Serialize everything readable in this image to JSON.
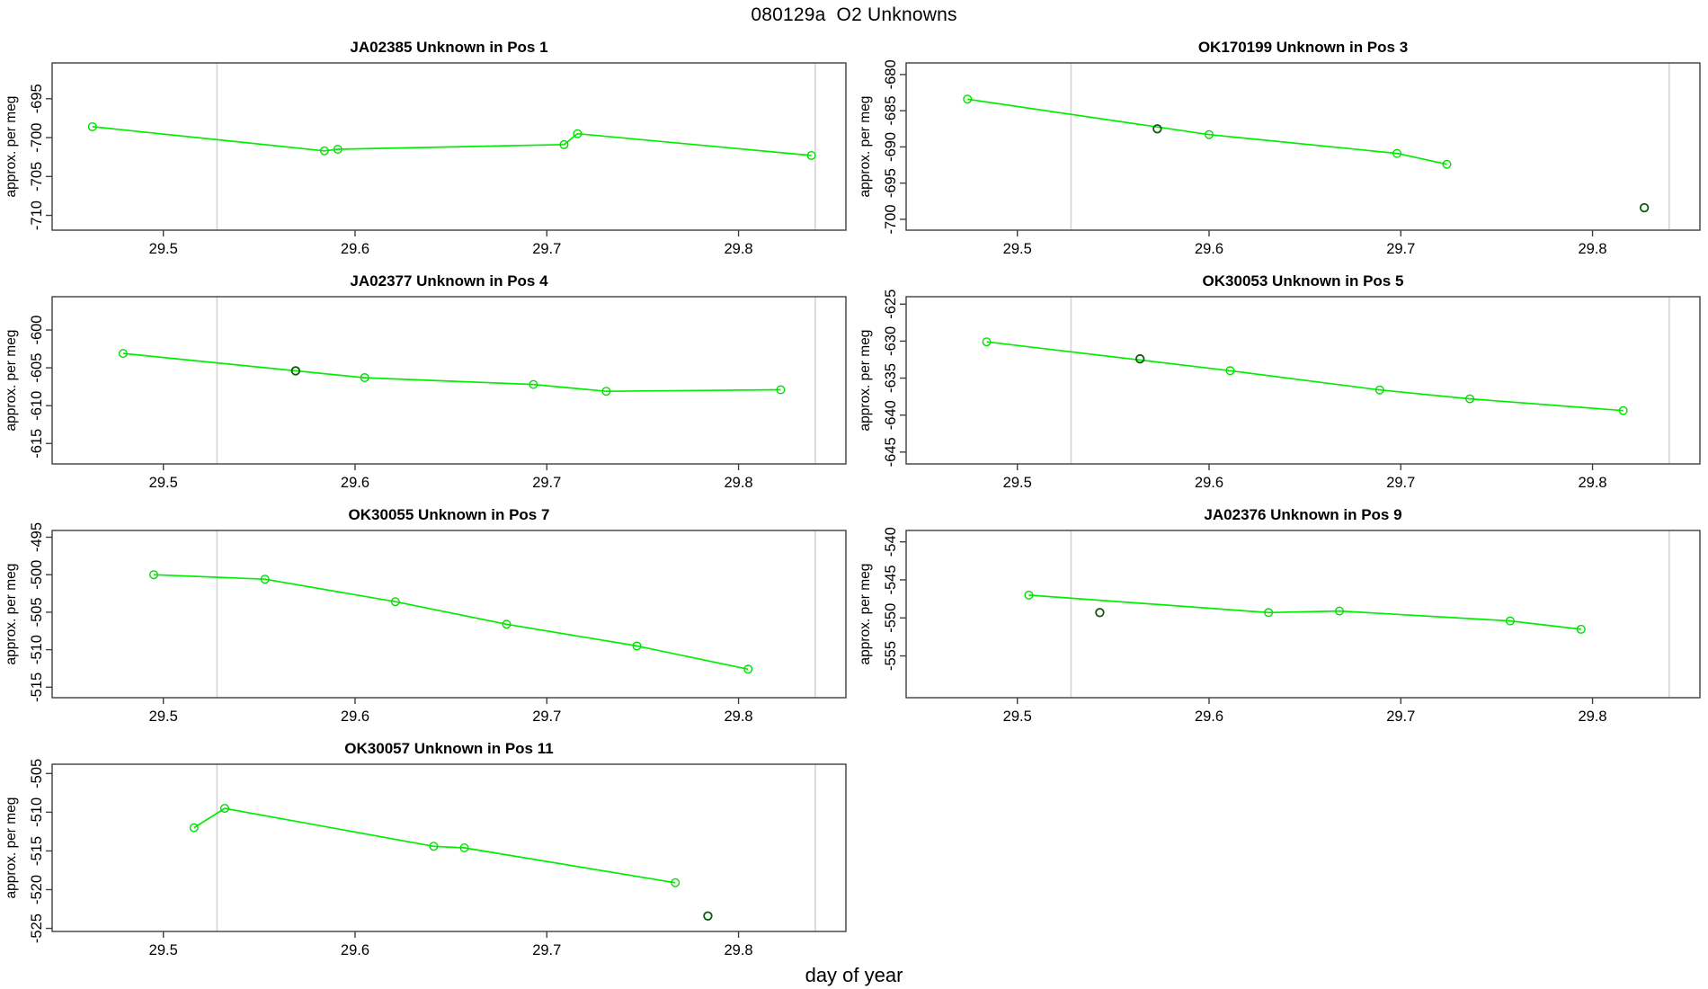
{
  "figure": {
    "title": "080129a  O2 Unknowns",
    "xlabel": "day of year",
    "ylabel": "approx. per meg",
    "xlim": [
      29.442,
      29.856
    ],
    "xticks": [
      29.5,
      29.6,
      29.7,
      29.8
    ],
    "vlines": [
      29.528,
      29.84
    ],
    "colors": {
      "line": "#00ee00",
      "marker": "#00dd00",
      "dark_marker": "#0a5c0a",
      "vline": "#d4d4d4",
      "axis": "#3f3f3f",
      "text": "#000000"
    }
  },
  "chart_data": [
    {
      "type": "line",
      "title": "JA02385   Unknown in Pos 1",
      "ylabel": "approx. per meg",
      "yticks": [
        -695,
        -700,
        -705,
        -710
      ],
      "ylim": [
        -711.9,
        -690.4
      ],
      "points": [
        {
          "x": 29.463,
          "y": -698.6,
          "dark": false
        },
        {
          "x": 29.584,
          "y": -701.7,
          "dark": false
        },
        {
          "x": 29.591,
          "y": -701.5,
          "dark": false
        },
        {
          "x": 29.709,
          "y": -700.9,
          "dark": false
        },
        {
          "x": 29.716,
          "y": -699.5,
          "dark": false
        },
        {
          "x": 29.838,
          "y": -702.3,
          "dark": false
        }
      ]
    },
    {
      "type": "line",
      "title": "OK170199   Unknown in Pos 3",
      "ylabel": "approx. per meg",
      "yticks": [
        -680,
        -685,
        -690,
        -695,
        -700
      ],
      "ylim": [
        -701.5,
        -678.4
      ],
      "points": [
        {
          "x": 29.474,
          "y": -683.4,
          "dark": false
        },
        {
          "x": 29.573,
          "y": -687.5,
          "dark": true
        },
        {
          "x": 29.6,
          "y": -688.3,
          "dark": false
        },
        {
          "x": 29.698,
          "y": -690.9,
          "dark": false
        },
        {
          "x": 29.724,
          "y": -692.4,
          "dark": false
        },
        {
          "x": 29.827,
          "y": -698.4,
          "dark": true
        }
      ]
    },
    {
      "type": "line",
      "title": "JA02377   Unknown in Pos 4",
      "ylabel": "approx. per meg",
      "yticks": [
        -600,
        -605,
        -610,
        -615
      ],
      "ylim": [
        -617.7,
        -595.6
      ],
      "points": [
        {
          "x": 29.479,
          "y": -603.1,
          "dark": false
        },
        {
          "x": 29.569,
          "y": -605.4,
          "dark": true
        },
        {
          "x": 29.605,
          "y": -606.3,
          "dark": false
        },
        {
          "x": 29.693,
          "y": -607.2,
          "dark": false
        },
        {
          "x": 29.731,
          "y": -608.1,
          "dark": false
        },
        {
          "x": 29.822,
          "y": -607.9,
          "dark": false
        }
      ]
    },
    {
      "type": "line",
      "title": "OK30053   Unknown in Pos 5",
      "ylabel": "approx. per meg",
      "yticks": [
        -625,
        -630,
        -635,
        -640,
        -645
      ],
      "ylim": [
        -646.6,
        -624.0
      ],
      "points": [
        {
          "x": 29.484,
          "y": -630.1,
          "dark": false
        },
        {
          "x": 29.564,
          "y": -632.4,
          "dark": true
        },
        {
          "x": 29.611,
          "y": -634.0,
          "dark": false
        },
        {
          "x": 29.689,
          "y": -636.6,
          "dark": false
        },
        {
          "x": 29.736,
          "y": -637.8,
          "dark": false
        },
        {
          "x": 29.816,
          "y": -639.4,
          "dark": false
        }
      ]
    },
    {
      "type": "line",
      "title": "OK30055   Unknown in Pos 7",
      "ylabel": "approx. per meg",
      "yticks": [
        -495,
        -500,
        -505,
        -510,
        -515
      ],
      "ylim": [
        -516.4,
        -494.1
      ],
      "points": [
        {
          "x": 29.495,
          "y": -500.0,
          "dark": false
        },
        {
          "x": 29.553,
          "y": -500.6,
          "dark": false
        },
        {
          "x": 29.621,
          "y": -503.6,
          "dark": false
        },
        {
          "x": 29.679,
          "y": -506.6,
          "dark": false
        },
        {
          "x": 29.747,
          "y": -509.5,
          "dark": false
        },
        {
          "x": 29.805,
          "y": -512.6,
          "dark": false
        }
      ]
    },
    {
      "type": "line",
      "title": "JA02376   Unknown in Pos 9",
      "ylabel": "approx. per meg",
      "yticks": [
        -540,
        -545,
        -550,
        -555
      ],
      "ylim": [
        -560.5,
        -538.5
      ],
      "points": [
        {
          "x": 29.506,
          "y": -547.0,
          "dark": false
        },
        {
          "x": 29.543,
          "y": -549.3,
          "dark": true
        },
        {
          "x": 29.631,
          "y": -549.3,
          "dark": false
        },
        {
          "x": 29.668,
          "y": -549.1,
          "dark": false
        },
        {
          "x": 29.757,
          "y": -550.4,
          "dark": false
        },
        {
          "x": 29.794,
          "y": -551.5,
          "dark": false
        }
      ]
    },
    {
      "type": "line",
      "title": "OK30057   Unknown in Pos 11",
      "ylabel": "approx. per meg",
      "yticks": [
        -505,
        -510,
        -515,
        -520,
        -525
      ],
      "ylim": [
        -525.4,
        -503.8
      ],
      "points": [
        {
          "x": 29.516,
          "y": -512.0,
          "dark": false
        },
        {
          "x": 29.532,
          "y": -509.5,
          "dark": false
        },
        {
          "x": 29.641,
          "y": -514.4,
          "dark": false
        },
        {
          "x": 29.657,
          "y": -514.6,
          "dark": false
        },
        {
          "x": 29.767,
          "y": -519.1,
          "dark": false
        },
        {
          "x": 29.784,
          "y": -523.4,
          "dark": true
        }
      ]
    }
  ]
}
